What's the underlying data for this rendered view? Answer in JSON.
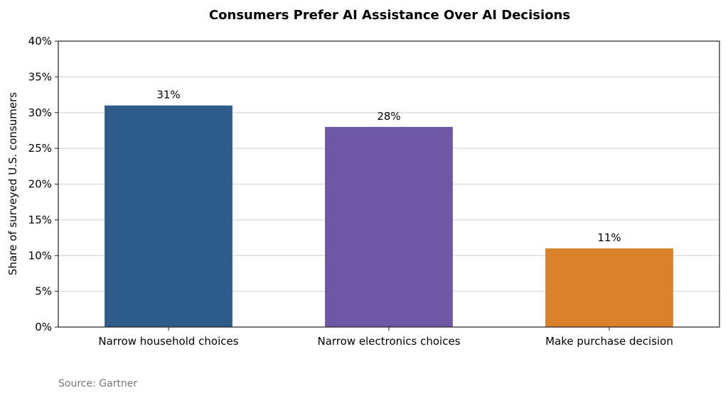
{
  "chart_data": {
    "type": "bar",
    "title": "Consumers Prefer AI Assistance Over AI Decisions",
    "xlabel": "",
    "ylabel": "Share of surveyed U.S. consumers",
    "categories": [
      "Narrow household choices",
      "Narrow electronics choices",
      "Make purchase decision"
    ],
    "values": [
      31,
      28,
      11
    ],
    "data_labels": [
      "31%",
      "28%",
      "11%"
    ],
    "colors": [
      "#2e5c8a",
      "#6e58a6",
      "#d9822b"
    ],
    "ylim": [
      0,
      40
    ],
    "yticks": [
      0,
      5,
      10,
      15,
      20,
      25,
      30,
      35,
      40
    ],
    "ytick_labels": [
      "0%",
      "5%",
      "10%",
      "15%",
      "20%",
      "25%",
      "30%",
      "35%",
      "40%"
    ],
    "grid": true,
    "grid_axis": "y",
    "grid_color": "#d9d9d9",
    "legend": "none",
    "source": "Source: Gartner"
  }
}
